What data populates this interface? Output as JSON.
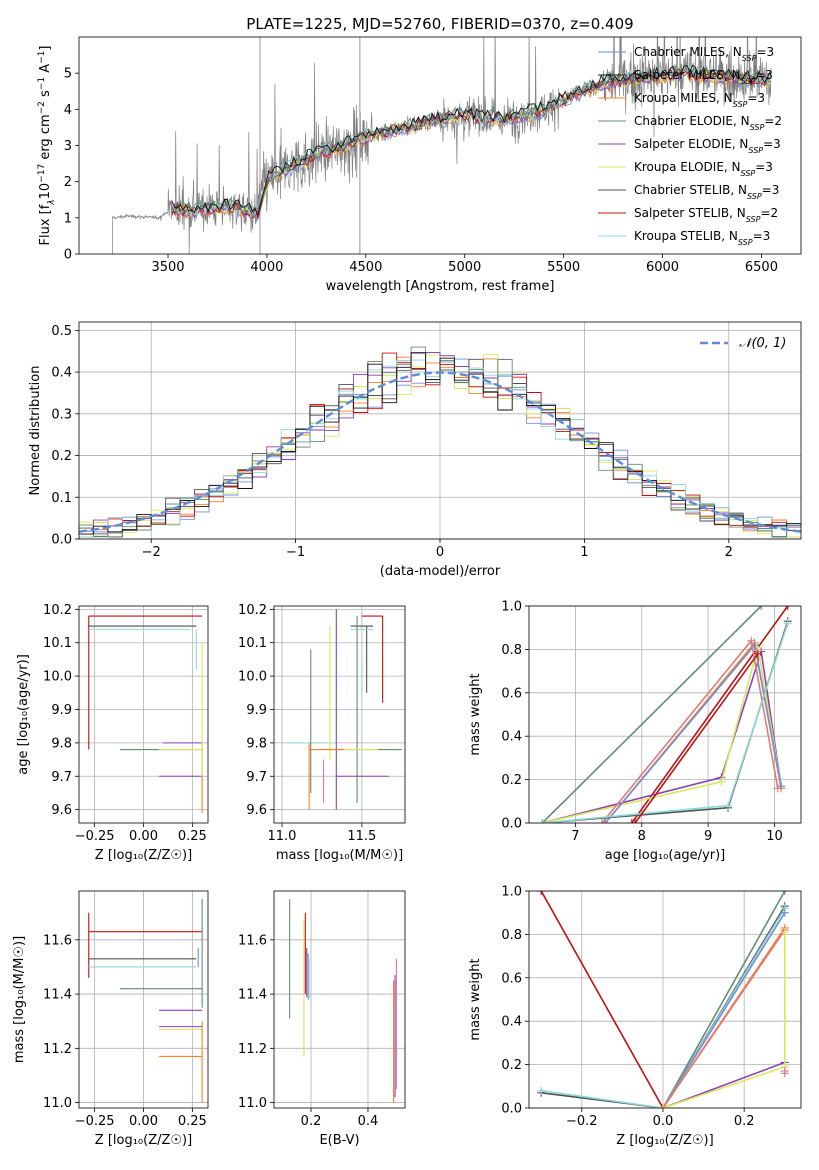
{
  "figure": {
    "title": "PLATE=1225, MJD=52760, FIBERID=0370, z=0.409"
  },
  "colors": {
    "chabrier_miles": "#6f8fd8",
    "salpeter_miles": "#111111",
    "kroupa_miles": "#ff7f2a",
    "chabrier_elodie": "#5f8f6f",
    "salpeter_elodie": "#8e3fb8",
    "kroupa_elodie": "#d9e85a",
    "chabrier_stelib": "#505050",
    "salpeter_stelib": "#c01010",
    "kroupa_stelib": "#8fd8d8",
    "data_spectrum": "#7f7f7f",
    "normal_curve": "#5b8ed6"
  },
  "legend_spectrum": [
    {
      "prefix": "Chabrier MILES, N",
      "sub": "SSP",
      "suffix": "=3",
      "color": "#6f8fd8"
    },
    {
      "prefix": "Salpeter MILES, N",
      "sub": "SSP",
      "suffix": "=3",
      "color": "#111111"
    },
    {
      "prefix": "Kroupa MILES, N",
      "sub": "SSP",
      "suffix": "=3",
      "color": "#ff7f2a"
    },
    {
      "prefix": "Chabrier ELODIE, N",
      "sub": "SSP",
      "suffix": "=2",
      "color": "#5f8f6f"
    },
    {
      "prefix": "Salpeter ELODIE, N",
      "sub": "SSP",
      "suffix": "=3",
      "color": "#8e3fb8"
    },
    {
      "prefix": "Kroupa ELODIE, N",
      "sub": "SSP",
      "suffix": "=3",
      "color": "#d9e85a"
    },
    {
      "prefix": "Chabrier STELIB, N",
      "sub": "SSP",
      "suffix": "=3",
      "color": "#505050"
    },
    {
      "prefix": "Salpeter STELIB, N",
      "sub": "SSP",
      "suffix": "=2",
      "color": "#c01010"
    },
    {
      "prefix": "Kroupa STELIB, N",
      "sub": "SSP",
      "suffix": "=3",
      "color": "#8fd8d8"
    }
  ],
  "legend_hist": {
    "label": "𝒩(0, 1)"
  },
  "chart_data": [
    {
      "id": "spectrum",
      "type": "line",
      "xlabel": "wavelength [Angstrom, rest frame]",
      "ylabel_parts": [
        "Flux [f",
        "λ",
        "10",
        "−17",
        " erg cm",
        "−2",
        " s",
        "−1",
        " A",
        "−1",
        "]"
      ],
      "xlim": [
        3050,
        6700
      ],
      "ylim": [
        0,
        6.0
      ],
      "xticks": [
        3500,
        4000,
        4500,
        5000,
        5500,
        6000,
        6500
      ],
      "yticks": [
        0,
        1,
        2,
        3,
        4,
        5
      ],
      "grid": false,
      "legend_position": "upper-right",
      "continuum_nodes": {
        "x": [
          3220,
          3300,
          3450,
          3520,
          3650,
          3800,
          3950,
          4000,
          4100,
          4250,
          4400,
          4500,
          4700,
          4900,
          5000,
          5200,
          5400,
          5550,
          5700,
          5900,
          6100,
          6300,
          6550
        ],
        "y": [
          1.0,
          1.05,
          1.0,
          1.25,
          1.2,
          1.35,
          1.1,
          2.05,
          2.35,
          2.75,
          3.0,
          3.25,
          3.5,
          3.75,
          3.85,
          3.7,
          4.0,
          4.4,
          4.7,
          4.9,
          5.0,
          4.9,
          4.8
        ]
      },
      "noise_segments": [
        {
          "x0": 3500,
          "x1": 3960,
          "amp": 1.0
        },
        {
          "x0": 3960,
          "x1": 4520,
          "amp": 1.5
        },
        {
          "x0": 4520,
          "x1": 4880,
          "amp": 0.5
        },
        {
          "x0": 4880,
          "x1": 5480,
          "amp": 1.0
        },
        {
          "x0": 5480,
          "x1": 5700,
          "amp": 0.3
        },
        {
          "x0": 5700,
          "x1": 6550,
          "amp": 1.3
        }
      ],
      "data_start": 3220
    },
    {
      "id": "residual-histogram",
      "type": "line",
      "xlabel": "(data-model)/error",
      "ylabel": "Normed distribution",
      "xlim": [
        -2.5,
        2.5
      ],
      "ylim": [
        0,
        0.52
      ],
      "xticks": [
        -2,
        -1,
        0,
        1,
        2
      ],
      "yticks": [
        0.0,
        0.1,
        0.2,
        0.3,
        0.4,
        0.5
      ],
      "grid": true,
      "legend_position": "upper-right",
      "bin_width": 0.1,
      "bin_start": -2.5
    },
    {
      "id": "age-vs-Z",
      "type": "scatter",
      "xlabel": "Z [log₁₀(Z/Z☉)]",
      "ylabel": "age  [log₁₀(age/yr)]",
      "xlim": [
        -0.33,
        0.33
      ],
      "ylim": [
        9.56,
        10.21
      ],
      "xticks": [
        -0.25,
        0.0,
        0.25
      ],
      "yticks": [
        9.6,
        9.7,
        9.8,
        9.9,
        10.0,
        10.1,
        10.2
      ],
      "grid": true,
      "points": [
        {
          "x": -0.28,
          "y": 10.18,
          "xl": 0.0,
          "xh": 0.58,
          "yl": 0.4,
          "yh": 0.0,
          "color": "#c01010"
        },
        {
          "x": -0.28,
          "y": 10.15,
          "xl": 0.0,
          "xh": 0.55,
          "yl": 0.0,
          "yh": 0.0,
          "color": "#505050"
        },
        {
          "x": -0.28,
          "y": 10.14,
          "xl": 0.0,
          "xh": 0.52,
          "yl": 0.0,
          "yh": 0.0,
          "color": "#8fd8d8"
        },
        {
          "x": 0.27,
          "y": 10.14,
          "xl": 0.0,
          "xh": 0.0,
          "yl": 0.12,
          "yh": 0.0,
          "color": "#8fd8d8"
        },
        {
          "x": -0.12,
          "y": 9.78,
          "xl": 0.0,
          "xh": 0.42,
          "yl": 0.0,
          "yh": 0.0,
          "color": "#5f8f6f"
        },
        {
          "x": 0.3,
          "y": 9.78,
          "xl": 0.22,
          "xh": 0.0,
          "yl": 0.0,
          "yh": 0.0,
          "color": "#d9e85a"
        },
        {
          "x": 0.3,
          "y": 9.8,
          "xl": 0.2,
          "xh": 0.0,
          "yl": 0.0,
          "yh": 0.0,
          "color": "#8e3fb8"
        },
        {
          "x": 0.3,
          "y": 9.7,
          "xl": 0.22,
          "xh": 0.0,
          "yl": 0.0,
          "yh": 0.0,
          "color": "#8e3fb8"
        },
        {
          "x": 0.3,
          "y": 9.75,
          "xl": 0.0,
          "xh": 0.0,
          "yl": 0.16,
          "yh": 0.05,
          "color": "#ff7f2a"
        },
        {
          "x": 0.3,
          "y": 9.9,
          "xl": 0.0,
          "xh": 0.0,
          "yl": 0.2,
          "yh": 0.2,
          "color": "#d9e85a"
        }
      ]
    },
    {
      "id": "age-vs-mass",
      "type": "scatter",
      "xlabel": "mass [log₁₀(M/M☉)]",
      "ylabel": "",
      "xlim": [
        10.95,
        11.77
      ],
      "ylim": [
        9.56,
        10.21
      ],
      "xticks": [
        11.0,
        11.5
      ],
      "yticks": [
        9.6,
        9.7,
        9.8,
        9.9,
        10.0,
        10.1,
        10.2
      ],
      "grid": true,
      "points": [
        {
          "x": 11.5,
          "y": 10.18,
          "xl": 0.0,
          "xh": 0.13,
          "yl": 0.0,
          "yh": 0.0,
          "color": "#c01010"
        },
        {
          "x": 11.63,
          "y": 10.05,
          "xl": 0.0,
          "xh": 0.0,
          "yl": 0.13,
          "yh": 0.13,
          "color": "#c01010"
        },
        {
          "x": 11.5,
          "y": 10.15,
          "xl": 0.07,
          "xh": 0.07,
          "yl": 0.0,
          "yh": 0.0,
          "color": "#505050"
        },
        {
          "x": 11.53,
          "y": 10.05,
          "xl": 0.0,
          "xh": 0.0,
          "yl": 0.1,
          "yh": 0.1,
          "color": "#505050"
        },
        {
          "x": 11.5,
          "y": 10.14,
          "xl": 0.07,
          "xh": 0.07,
          "yl": 0.0,
          "yh": 0.0,
          "color": "#8fd8d8"
        },
        {
          "x": 11.5,
          "y": 10.05,
          "xl": 0.0,
          "xh": 0.0,
          "yl": 0.1,
          "yh": 0.0,
          "color": "#8fd8d8"
        },
        {
          "x": 11.42,
          "y": 9.78,
          "xl": 0.0,
          "xh": 0.33,
          "yl": 0.0,
          "yh": 0.0,
          "color": "#5f8f6f"
        },
        {
          "x": 11.47,
          "y": 9.9,
          "xl": 0.0,
          "xh": 0.0,
          "yl": 0.28,
          "yh": 0.28,
          "color": "#5f8f6f"
        },
        {
          "x": 11.13,
          "y": 9.8,
          "xl": 0.1,
          "xh": 0.22,
          "yl": 0.0,
          "yh": 0.0,
          "color": "#8fd8d8"
        },
        {
          "x": 11.27,
          "y": 9.78,
          "xl": 0.0,
          "xh": 0.33,
          "yl": 0.0,
          "yh": 0.0,
          "color": "#d9e85a"
        },
        {
          "x": 11.3,
          "y": 9.95,
          "xl": 0.0,
          "xh": 0.0,
          "yl": 0.2,
          "yh": 0.2,
          "color": "#d9e85a"
        },
        {
          "x": 11.34,
          "y": 9.7,
          "xl": 0.0,
          "xh": 0.33,
          "yl": 0.0,
          "yh": 0.0,
          "color": "#8e3fb8"
        },
        {
          "x": 11.34,
          "y": 9.9,
          "xl": 0.0,
          "xh": 0.0,
          "yl": 0.3,
          "yh": 0.3,
          "color": "#8e3fb8"
        },
        {
          "x": 11.17,
          "y": 9.8,
          "xl": 0.0,
          "xh": 0.0,
          "yl": 0.2,
          "yh": 0.0,
          "color": "#ff7f2a"
        },
        {
          "x": 11.17,
          "y": 9.78,
          "xl": 0.0,
          "xh": 0.22,
          "yl": 0.0,
          "yh": 0.0,
          "color": "#ff7f2a"
        },
        {
          "x": 11.26,
          "y": 9.75,
          "xl": 0.0,
          "xh": 0.0,
          "yl": 0.13,
          "yh": 0.0,
          "color": "#e07a9a"
        },
        {
          "x": 11.18,
          "y": 9.9,
          "xl": 0.0,
          "xh": 0.0,
          "yl": 0.25,
          "yh": 0.18,
          "color": "#5f8f6f"
        }
      ]
    },
    {
      "id": "weight-vs-age",
      "type": "line",
      "xlabel": "age  [log₁₀(age/yr)]",
      "ylabel": "mass weight",
      "xlim": [
        6.3,
        10.4
      ],
      "ylim": [
        0,
        1.0
      ],
      "xticks": [
        7,
        8,
        9,
        10
      ],
      "yticks": [
        0.0,
        0.2,
        0.4,
        0.6,
        0.8,
        1.0
      ],
      "grid": true,
      "series": [
        {
          "color": "#5f8f6f",
          "x": [
            6.5,
            9.8
          ],
          "y": [
            0.0,
            1.0
          ]
        },
        {
          "color": "#c01010",
          "x": [
            7.85,
            10.2
          ],
          "y": [
            0.0,
            1.0
          ]
        },
        {
          "color": "#8e3fb8",
          "x": [
            6.5,
            9.2,
            9.8,
            10.1
          ],
          "y": [
            0.0,
            0.21,
            0.79,
            0.17
          ]
        },
        {
          "color": "#d9e85a",
          "x": [
            6.5,
            9.2,
            9.75,
            10.1
          ],
          "y": [
            0.0,
            0.19,
            0.81,
            0.17
          ]
        },
        {
          "color": "#ff7f2a",
          "x": [
            7.45,
            9.7,
            10.1
          ],
          "y": [
            0.0,
            0.83,
            0.16
          ]
        },
        {
          "color": "#6f8fd8",
          "x": [
            7.45,
            9.7,
            10.1
          ],
          "y": [
            0.0,
            0.82,
            0.17
          ]
        },
        {
          "color": "#e07a7a",
          "x": [
            7.4,
            9.65,
            10.05
          ],
          "y": [
            0.0,
            0.84,
            0.16
          ]
        },
        {
          "color": "#505050",
          "x": [
            6.5,
            9.3,
            10.2
          ],
          "y": [
            0.0,
            0.07,
            0.93
          ]
        },
        {
          "color": "#8fd8d8",
          "x": [
            6.5,
            9.3,
            10.2
          ],
          "y": [
            0.0,
            0.08,
            0.92
          ]
        },
        {
          "color": "#c01010",
          "x": [
            7.9,
            9.75
          ],
          "y": [
            0.0,
            0.78
          ]
        }
      ]
    },
    {
      "id": "mass-vs-Z",
      "type": "scatter",
      "xlabel": "Z [log₁₀(Z/Z☉)]",
      "ylabel": "mass [log₁₀(M/M☉)]",
      "xlim": [
        -0.33,
        0.33
      ],
      "ylim": [
        10.98,
        11.78
      ],
      "xticks": [
        -0.25,
        0.0,
        0.25
      ],
      "yticks": [
        11.0,
        11.2,
        11.4,
        11.6
      ],
      "grid": true,
      "points": [
        {
          "x": -0.28,
          "y": 11.63,
          "xl": 0.0,
          "xh": 0.58,
          "yl": 0.17,
          "yh": 0.07,
          "color": "#c01010"
        },
        {
          "x": -0.28,
          "y": 11.53,
          "xl": 0.0,
          "xh": 0.55,
          "yl": 0.0,
          "yh": 0.0,
          "color": "#505050"
        },
        {
          "x": -0.28,
          "y": 11.5,
          "xl": 0.0,
          "xh": 0.55,
          "yl": 0.0,
          "yh": 0.0,
          "color": "#8fd8d8"
        },
        {
          "x": 0.28,
          "y": 11.5,
          "xl": 0.0,
          "xh": 0.0,
          "yl": 0.0,
          "yh": 0.07,
          "color": "#6f8fd8"
        },
        {
          "x": -0.12,
          "y": 11.42,
          "xl": 0.0,
          "xh": 0.42,
          "yl": 0.0,
          "yh": 0.0,
          "color": "#5f8f6f"
        },
        {
          "x": 0.3,
          "y": 11.55,
          "xl": 0.0,
          "xh": 0.0,
          "yl": 0.2,
          "yh": 0.2,
          "color": "#5f8f6f"
        },
        {
          "x": 0.3,
          "y": 11.34,
          "xl": 0.22,
          "xh": 0.0,
          "yl": 0.0,
          "yh": 0.0,
          "color": "#8e3fb8"
        },
        {
          "x": 0.3,
          "y": 11.28,
          "xl": 0.22,
          "xh": 0.0,
          "yl": 0.0,
          "yh": 0.0,
          "color": "#8e3fb8"
        },
        {
          "x": 0.3,
          "y": 11.27,
          "xl": 0.22,
          "xh": 0.0,
          "yl": 0.0,
          "yh": 0.0,
          "color": "#d9e85a"
        },
        {
          "x": 0.3,
          "y": 11.17,
          "xl": 0.22,
          "xh": 0.0,
          "yl": 0.0,
          "yh": 0.0,
          "color": "#ff7f2a"
        },
        {
          "x": 0.3,
          "y": 11.1,
          "xl": 0.0,
          "xh": 0.0,
          "yl": 0.1,
          "yh": 0.2,
          "color": "#ff7f2a"
        }
      ]
    },
    {
      "id": "mass-vs-ebv",
      "type": "scatter",
      "xlabel": "E(B-V)",
      "ylabel": "",
      "xlim": [
        0.07,
        0.53
      ],
      "ylim": [
        10.98,
        11.78
      ],
      "xticks": [
        0.2,
        0.4
      ],
      "yticks": [
        11.0,
        11.2,
        11.4,
        11.6
      ],
      "grid": true,
      "points": [
        {
          "x": 0.125,
          "y": 11.53,
          "xl": 0.0,
          "xh": 0.0,
          "yl": 0.22,
          "yh": 0.22,
          "color": "#5f8f6f"
        },
        {
          "x": 0.175,
          "y": 11.42,
          "xl": 0.0,
          "xh": 0.0,
          "yl": 0.25,
          "yh": 0.25,
          "color": "#d9e85a"
        },
        {
          "x": 0.18,
          "y": 11.5,
          "xl": 0.0,
          "xh": 0.0,
          "yl": 0.1,
          "yh": 0.2,
          "color": "#c01010"
        },
        {
          "x": 0.185,
          "y": 11.52,
          "xl": 0.0,
          "xh": 0.0,
          "yl": 0.13,
          "yh": 0.05,
          "color": "#8e3fb8"
        },
        {
          "x": 0.19,
          "y": 11.5,
          "xl": 0.0,
          "xh": 0.0,
          "yl": 0.12,
          "yh": 0.05,
          "color": "#6f8fd8"
        },
        {
          "x": 0.193,
          "y": 11.48,
          "xl": 0.0,
          "xh": 0.0,
          "yl": 0.1,
          "yh": 0.05,
          "color": "#8fd8d8"
        },
        {
          "x": 0.49,
          "y": 11.2,
          "xl": 0.0,
          "xh": 0.0,
          "yl": 0.2,
          "yh": 0.25,
          "color": "#ff7f2a"
        },
        {
          "x": 0.495,
          "y": 11.22,
          "xl": 0.0,
          "xh": 0.0,
          "yl": 0.2,
          "yh": 0.25,
          "color": "#8e3fb8"
        },
        {
          "x": 0.5,
          "y": 11.35,
          "xl": 0.0,
          "xh": 0.0,
          "yl": 0.3,
          "yh": 0.18,
          "color": "#e07a9a"
        }
      ]
    },
    {
      "id": "weight-vs-Z",
      "type": "line",
      "xlabel": "Z [log₁₀(Z/Z☉)]",
      "ylabel": "mass weight",
      "xlim": [
        -0.33,
        0.34
      ],
      "ylim": [
        0,
        1.0
      ],
      "xticks": [
        -0.2,
        0.0,
        0.2
      ],
      "yticks": [
        0.0,
        0.2,
        0.4,
        0.6,
        0.8,
        1.0
      ],
      "grid": true,
      "series": [
        {
          "color": "#c01010",
          "x": [
            -0.3,
            0.0
          ],
          "y": [
            1.0,
            0.0
          ]
        },
        {
          "color": "#5f8f6f",
          "x": [
            0.0,
            0.3
          ],
          "y": [
            0.0,
            1.0
          ]
        },
        {
          "color": "#505050",
          "x": [
            -0.3,
            0.0,
            0.3
          ],
          "y": [
            0.07,
            0.0,
            0.93
          ]
        },
        {
          "color": "#8fd8d8",
          "x": [
            -0.3,
            0.0,
            0.3
          ],
          "y": [
            0.08,
            0.0,
            0.92
          ]
        },
        {
          "color": "#6f8fd8",
          "x": [
            0.0,
            0.3
          ],
          "y": [
            0.0,
            0.9
          ]
        },
        {
          "color": "#ff7f2a",
          "x": [
            0.0,
            0.3
          ],
          "y": [
            0.0,
            0.83
          ]
        },
        {
          "color": "#e07a7a",
          "x": [
            0.0,
            0.3
          ],
          "y": [
            0.0,
            0.82
          ]
        },
        {
          "color": "#8e3fb8",
          "x": [
            0.0,
            0.3
          ],
          "y": [
            0.0,
            0.21
          ]
        },
        {
          "color": "#d9e85a",
          "x": [
            0.0,
            0.3
          ],
          "y": [
            0.0,
            0.19
          ]
        },
        {
          "color": "#d9e85a",
          "x": [
            0.3,
            0.3
          ],
          "y": [
            0.19,
            0.81
          ]
        },
        {
          "color": "#e07a9a",
          "x": [
            0.3,
            0.3
          ],
          "y": [
            0.16,
            0.17
          ]
        }
      ]
    }
  ]
}
